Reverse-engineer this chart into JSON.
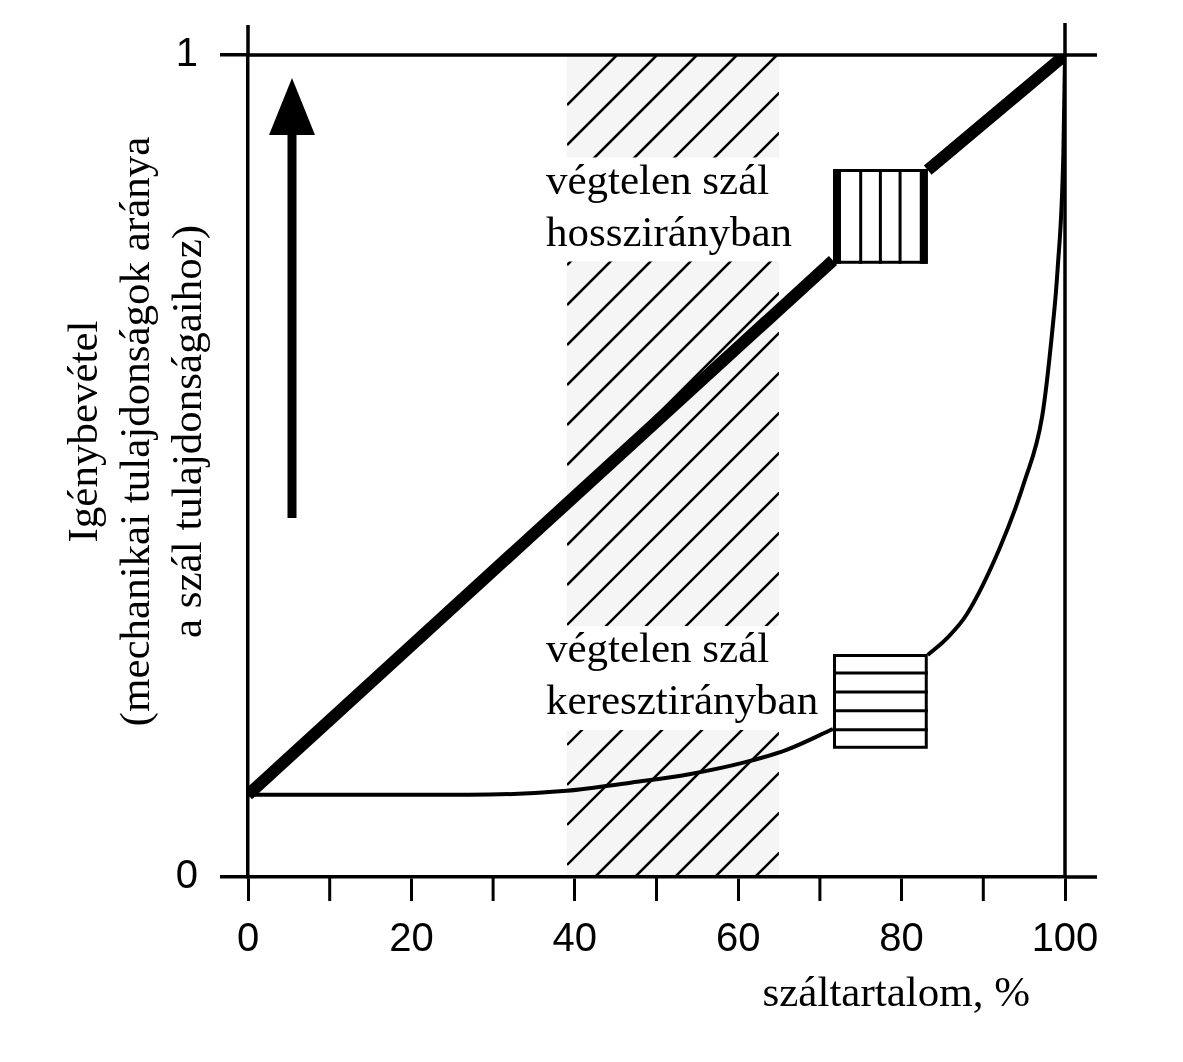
{
  "chart_data": {
    "type": "line",
    "xlabel": "száltartalom, %",
    "ylabel": "Igénybevétel\n(mechanikai tulajdonságok aránya\na szál tulajdonságaihoz)",
    "xlim": [
      0,
      100
    ],
    "xticks": [
      0,
      20,
      40,
      60,
      80,
      100
    ],
    "ylim": [
      0,
      1
    ],
    "yticks": [
      0,
      1
    ],
    "series": [
      {
        "color": "#000000",
        "x": [
          0,
          71.6,
          77.4,
          83.2,
          100
        ],
        "values": [
          0.1,
          0.75,
          null,
          0.86,
          1
        ]
      },
      {
        "color": "#000000",
        "x": [
          0,
          12.5,
          27,
          39,
          47,
          54,
          61,
          66,
          71.6,
          77.4,
          83.2,
          85.5,
          88,
          92,
          95,
          97.2,
          98.4,
          99.1,
          99.8,
          100
        ],
        "values": [
          0.1,
          0.1,
          0.1,
          0.105,
          0.115,
          0.125,
          0.14,
          0.155,
          0.18,
          null,
          0.27,
          0.29,
          0.32,
          0.4,
          0.48,
          0.56,
          0.66,
          0.74,
          0.88,
          1
        ]
      }
    ],
    "annotations": [
      {
        "text": "végtelen szál hosszirányban",
        "x": 71.6,
        "y": 0.75
      },
      {
        "text": "végtelen szál keresztirányban",
        "x": 71.6,
        "y": 0.18
      }
    ],
    "bands": [
      {
        "axis": "x",
        "from": 39,
        "to": 65,
        "color": "#000000"
      }
    ]
  }
}
